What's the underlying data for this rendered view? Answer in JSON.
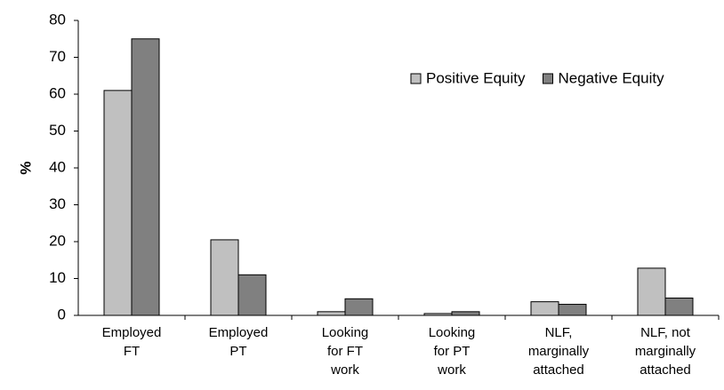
{
  "chart_data": {
    "type": "bar",
    "y_label": "%",
    "categories": [
      "Employed\nFT",
      "Employed\nPT",
      "Looking\nfor FT\nwork",
      "Looking\nfor PT\nwork",
      "NLF,\nmarginally\nattached",
      "NLF, not\nmarginally\nattached"
    ],
    "series": [
      {
        "name": "Positive Equity",
        "color": "#c0c0c0",
        "values": [
          61,
          20.5,
          1,
          0.5,
          3.7,
          12.8
        ]
      },
      {
        "name": "Negative Equity",
        "color": "#808080",
        "values": [
          75,
          11,
          4.5,
          1,
          3,
          4.7
        ]
      }
    ],
    "ylim": [
      0,
      80
    ],
    "yticks": [
      0,
      10,
      20,
      30,
      40,
      50,
      60,
      70,
      80
    ],
    "grid": false,
    "legend": "top-right"
  }
}
